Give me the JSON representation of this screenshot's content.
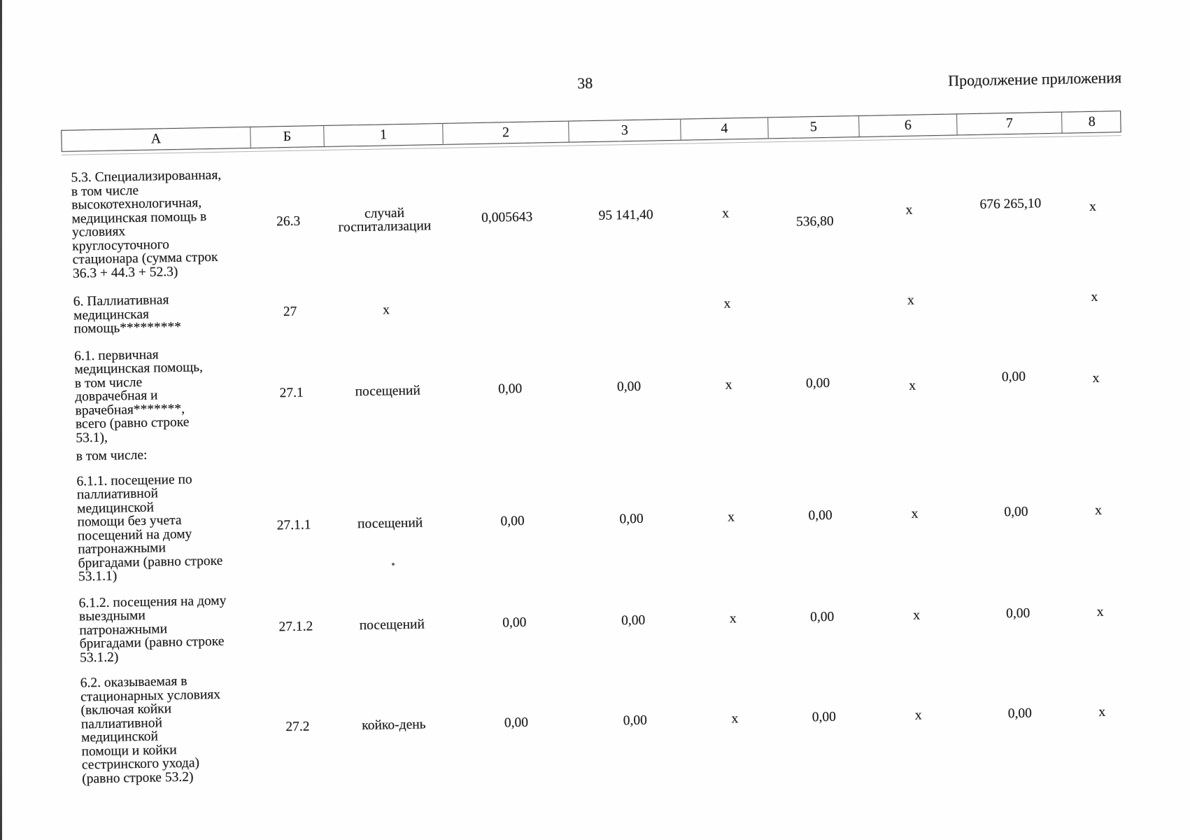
{
  "page": {
    "number": "38",
    "continuation_label": "Продолжение приложения"
  },
  "table": {
    "columns": [
      "А",
      "Б",
      "1",
      "2",
      "3",
      "4",
      "5",
      "6",
      "7",
      "8"
    ],
    "rows": [
      [
        "5.3. Специализированная,\nв том числе\nвысокотехнологичная,\nмедицинская помощь в\nусловиях\nкруглосуточного\nстационара (сумма строк\n36.3 + 44.3 + 52.3)",
        "26.3",
        "случай\nгоспитализации",
        "0,005643",
        "95 141,40",
        "х",
        "536,80",
        "х",
        "676 265,10",
        "х"
      ],
      [
        "6. Паллиативная\nмедицинская\nпомощь*********",
        "27",
        "х",
        "",
        "",
        "х",
        "",
        "х",
        "",
        "х"
      ],
      [
        "6.1. первичная\nмедицинская помощь,\nв том числе\nдоврачебная и\nврачебная*******,\nвсего (равно строке\n53.1),",
        "27.1",
        "посещений",
        "0,00",
        "0,00",
        "х",
        "0,00",
        "х",
        "0,00",
        "х"
      ],
      [
        "в том числе:",
        "",
        "",
        "",
        "",
        "",
        "",
        "",
        "",
        ""
      ],
      [
        "6.1.1. посещение по\nпаллиативной\nмедицинской\nпомощи без учета\nпосещений на дому\nпатронажными\nбригадами (равно строке\n53.1.1)",
        "27.1.1",
        "посещений",
        "0,00",
        "0,00",
        "х",
        "0,00",
        "х",
        "0,00",
        "х"
      ],
      [
        "6.1.2. посещения на дому\nвыездными\nпатронажными\nбригадами (равно строке\n53.1.2)",
        "27.1.2",
        "посещений",
        "0,00",
        "0,00",
        "х",
        "0,00",
        "х",
        "0,00",
        "х"
      ],
      [
        "6.2. оказываемая в\nстационарных условиях\n(включая койки\nпаллиативной\nмедицинской\nпомощи и койки\nсестринского ухода)\n(равно строке 53.2)",
        "27.2",
        "койко-день",
        "0,00",
        "0,00",
        "х",
        "0,00",
        "х",
        "0,00",
        "х"
      ]
    ]
  }
}
